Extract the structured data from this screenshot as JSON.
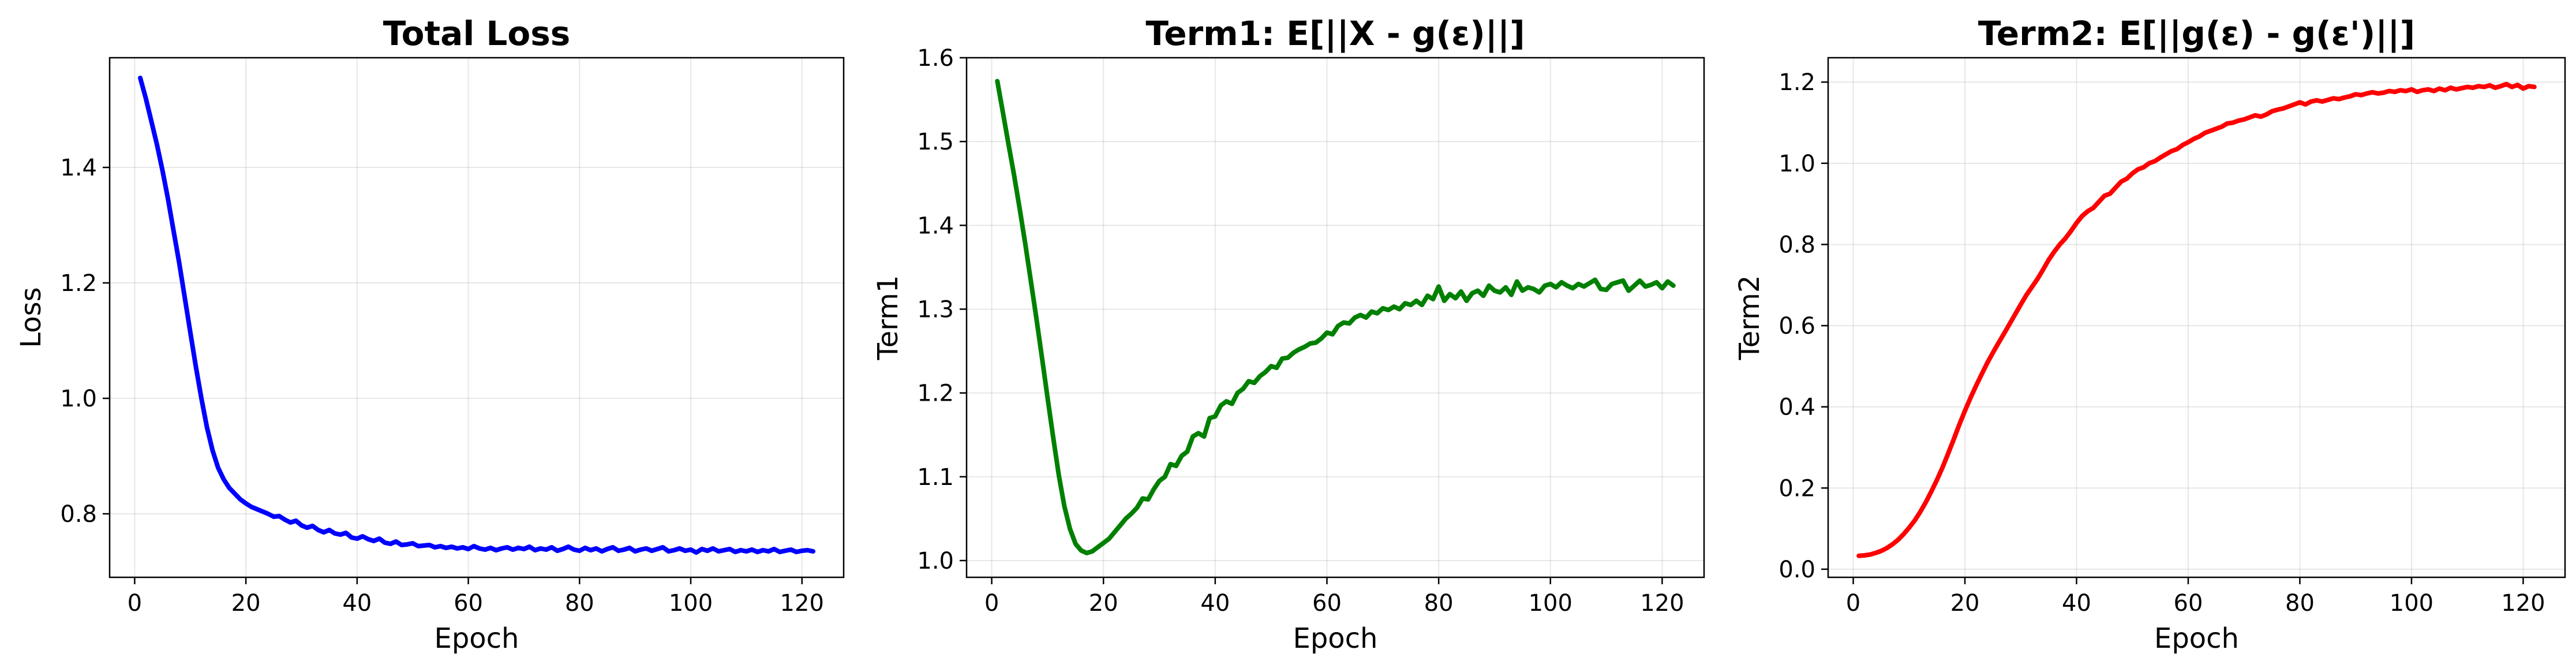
{
  "chart_data": [
    {
      "type": "line",
      "title": "Total Loss",
      "xlabel": "Epoch",
      "ylabel": "Loss",
      "xlim": [
        -4.5,
        127.5
      ],
      "ylim": [
        0.69,
        1.59
      ],
      "xticks": [
        0,
        20,
        40,
        60,
        80,
        100,
        120
      ],
      "yticks": [
        0.8,
        1.0,
        1.2,
        1.4
      ],
      "ytick_decimals": 1,
      "grid": true,
      "series": [
        {
          "color": "#0000ff",
          "x": [
            1,
            2,
            3,
            4,
            5,
            6,
            7,
            8,
            9,
            10,
            11,
            12,
            13,
            14,
            15,
            16,
            17,
            18,
            19,
            20,
            21,
            22,
            23,
            24,
            25,
            26,
            27,
            28,
            29,
            30,
            31,
            32,
            33,
            34,
            35,
            36,
            37,
            38,
            39,
            40,
            41,
            42,
            43,
            44,
            45,
            46,
            47,
            48,
            49,
            50,
            51,
            52,
            53,
            54,
            55,
            56,
            57,
            58,
            59,
            60,
            61,
            62,
            63,
            64,
            65,
            66,
            67,
            68,
            69,
            70,
            71,
            72,
            73,
            74,
            75,
            76,
            77,
            78,
            79,
            80,
            81,
            82,
            83,
            84,
            85,
            86,
            87,
            88,
            89,
            90,
            91,
            92,
            93,
            94,
            95,
            96,
            97,
            98,
            99,
            100,
            101,
            102,
            103,
            104,
            105,
            106,
            107,
            108,
            109,
            110,
            111,
            112,
            113,
            114,
            115,
            116,
            117,
            118,
            119,
            120,
            121,
            122
          ],
          "y": [
            1.555,
            1.52,
            1.48,
            1.44,
            1.395,
            1.345,
            1.29,
            1.235,
            1.175,
            1.115,
            1.055,
            1.0,
            0.95,
            0.91,
            0.88,
            0.86,
            0.845,
            0.835,
            0.825,
            0.818,
            0.812,
            0.808,
            0.804,
            0.8,
            0.795,
            0.796,
            0.79,
            0.785,
            0.788,
            0.78,
            0.776,
            0.779,
            0.772,
            0.768,
            0.772,
            0.766,
            0.764,
            0.767,
            0.759,
            0.757,
            0.761,
            0.756,
            0.753,
            0.757,
            0.75,
            0.748,
            0.752,
            0.746,
            0.747,
            0.749,
            0.744,
            0.745,
            0.746,
            0.742,
            0.744,
            0.741,
            0.743,
            0.74,
            0.742,
            0.739,
            0.744,
            0.74,
            0.738,
            0.741,
            0.737,
            0.74,
            0.742,
            0.738,
            0.741,
            0.739,
            0.743,
            0.737,
            0.74,
            0.738,
            0.742,
            0.736,
            0.739,
            0.743,
            0.738,
            0.736,
            0.741,
            0.737,
            0.74,
            0.735,
            0.739,
            0.742,
            0.736,
            0.738,
            0.741,
            0.735,
            0.738,
            0.74,
            0.736,
            0.739,
            0.742,
            0.735,
            0.737,
            0.74,
            0.736,
            0.738,
            0.733,
            0.739,
            0.736,
            0.74,
            0.735,
            0.737,
            0.739,
            0.734,
            0.737,
            0.735,
            0.738,
            0.734,
            0.737,
            0.735,
            0.739,
            0.734,
            0.736,
            0.738,
            0.734,
            0.736,
            0.737,
            0.735
          ]
        }
      ]
    },
    {
      "type": "line",
      "title": "Term1: E[||X - g(ε)||]",
      "xlabel": "Epoch",
      "ylabel": "Term1",
      "xlim": [
        -4.5,
        127.5
      ],
      "ylim": [
        0.98,
        1.6
      ],
      "xticks": [
        0,
        20,
        40,
        60,
        80,
        100,
        120
      ],
      "yticks": [
        1.0,
        1.1,
        1.2,
        1.3,
        1.4,
        1.5,
        1.6
      ],
      "ytick_decimals": 1,
      "grid": true,
      "series": [
        {
          "color": "#008000",
          "x": [
            1,
            2,
            3,
            4,
            5,
            6,
            7,
            8,
            9,
            10,
            11,
            12,
            13,
            14,
            15,
            16,
            17,
            18,
            19,
            20,
            21,
            22,
            23,
            24,
            25,
            26,
            27,
            28,
            29,
            30,
            31,
            32,
            33,
            34,
            35,
            36,
            37,
            38,
            39,
            40,
            41,
            42,
            43,
            44,
            45,
            46,
            47,
            48,
            49,
            50,
            51,
            52,
            53,
            54,
            55,
            56,
            57,
            58,
            59,
            60,
            61,
            62,
            63,
            64,
            65,
            66,
            67,
            68,
            69,
            70,
            71,
            72,
            73,
            74,
            75,
            76,
            77,
            78,
            79,
            80,
            81,
            82,
            83,
            84,
            85,
            86,
            87,
            88,
            89,
            90,
            91,
            92,
            93,
            94,
            95,
            96,
            97,
            98,
            99,
            100,
            101,
            102,
            103,
            104,
            105,
            106,
            107,
            108,
            109,
            110,
            111,
            112,
            113,
            114,
            115,
            116,
            117,
            118,
            119,
            120,
            121,
            122
          ],
          "y": [
            1.572,
            1.535,
            1.497,
            1.46,
            1.42,
            1.378,
            1.334,
            1.289,
            1.242,
            1.194,
            1.147,
            1.102,
            1.065,
            1.038,
            1.02,
            1.012,
            1.009,
            1.011,
            1.016,
            1.021,
            1.026,
            1.034,
            1.042,
            1.05,
            1.056,
            1.063,
            1.074,
            1.073,
            1.085,
            1.095,
            1.1,
            1.115,
            1.113,
            1.125,
            1.13,
            1.148,
            1.152,
            1.148,
            1.17,
            1.172,
            1.185,
            1.19,
            1.187,
            1.2,
            1.205,
            1.214,
            1.212,
            1.22,
            1.225,
            1.232,
            1.23,
            1.241,
            1.242,
            1.248,
            1.252,
            1.255,
            1.259,
            1.26,
            1.265,
            1.272,
            1.27,
            1.28,
            1.284,
            1.283,
            1.29,
            1.293,
            1.29,
            1.297,
            1.295,
            1.301,
            1.299,
            1.303,
            1.3,
            1.307,
            1.305,
            1.31,
            1.305,
            1.316,
            1.312,
            1.327,
            1.31,
            1.318,
            1.313,
            1.321,
            1.31,
            1.319,
            1.322,
            1.316,
            1.328,
            1.322,
            1.32,
            1.326,
            1.317,
            1.333,
            1.322,
            1.326,
            1.324,
            1.32,
            1.328,
            1.33,
            1.326,
            1.332,
            1.328,
            1.325,
            1.33,
            1.327,
            1.331,
            1.335,
            1.324,
            1.323,
            1.33,
            1.332,
            1.334,
            1.322,
            1.328,
            1.334,
            1.327,
            1.329,
            1.332,
            1.325,
            1.333,
            1.328
          ]
        }
      ]
    },
    {
      "type": "line",
      "title": "Term2: E[||g(ε) - g(ε')||]",
      "xlabel": "Epoch",
      "ylabel": "Term2",
      "xlim": [
        -4.5,
        127.5
      ],
      "ylim": [
        -0.02,
        1.26
      ],
      "xticks": [
        0,
        20,
        40,
        60,
        80,
        100,
        120
      ],
      "yticks": [
        0.0,
        0.2,
        0.4,
        0.6,
        0.8,
        1.0,
        1.2
      ],
      "ytick_decimals": 1,
      "grid": true,
      "series": [
        {
          "color": "#ff0000",
          "x": [
            1,
            2,
            3,
            4,
            5,
            6,
            7,
            8,
            9,
            10,
            11,
            12,
            13,
            14,
            15,
            16,
            17,
            18,
            19,
            20,
            21,
            22,
            23,
            24,
            25,
            26,
            27,
            28,
            29,
            30,
            31,
            32,
            33,
            34,
            35,
            36,
            37,
            38,
            39,
            40,
            41,
            42,
            43,
            44,
            45,
            46,
            47,
            48,
            49,
            50,
            51,
            52,
            53,
            54,
            55,
            56,
            57,
            58,
            59,
            60,
            61,
            62,
            63,
            64,
            65,
            66,
            67,
            68,
            69,
            70,
            71,
            72,
            73,
            74,
            75,
            76,
            77,
            78,
            79,
            80,
            81,
            82,
            83,
            84,
            85,
            86,
            87,
            88,
            89,
            90,
            91,
            92,
            93,
            94,
            95,
            96,
            97,
            98,
            99,
            100,
            101,
            102,
            103,
            104,
            105,
            106,
            107,
            108,
            109,
            110,
            111,
            112,
            113,
            114,
            115,
            116,
            117,
            118,
            119,
            120,
            121,
            122
          ],
          "y": [
            0.033,
            0.034,
            0.036,
            0.04,
            0.045,
            0.052,
            0.061,
            0.072,
            0.086,
            0.102,
            0.12,
            0.141,
            0.165,
            0.192,
            0.22,
            0.251,
            0.285,
            0.32,
            0.356,
            0.39,
            0.422,
            0.452,
            0.48,
            0.508,
            0.533,
            0.557,
            0.58,
            0.604,
            0.628,
            0.652,
            0.675,
            0.695,
            0.715,
            0.738,
            0.762,
            0.782,
            0.8,
            0.815,
            0.833,
            0.853,
            0.87,
            0.882,
            0.89,
            0.905,
            0.92,
            0.925,
            0.94,
            0.955,
            0.962,
            0.975,
            0.985,
            0.99,
            1.0,
            1.005,
            1.014,
            1.022,
            1.03,
            1.035,
            1.045,
            1.052,
            1.06,
            1.066,
            1.075,
            1.08,
            1.085,
            1.09,
            1.098,
            1.1,
            1.105,
            1.108,
            1.113,
            1.118,
            1.115,
            1.12,
            1.128,
            1.132,
            1.135,
            1.14,
            1.145,
            1.15,
            1.145,
            1.152,
            1.155,
            1.152,
            1.156,
            1.16,
            1.158,
            1.162,
            1.165,
            1.17,
            1.168,
            1.172,
            1.175,
            1.172,
            1.174,
            1.178,
            1.176,
            1.18,
            1.178,
            1.182,
            1.176,
            1.18,
            1.182,
            1.178,
            1.184,
            1.18,
            1.186,
            1.182,
            1.185,
            1.188,
            1.186,
            1.19,
            1.188,
            1.192,
            1.186,
            1.19,
            1.195,
            1.188,
            1.193,
            1.184,
            1.19,
            1.188
          ]
        }
      ]
    }
  ]
}
